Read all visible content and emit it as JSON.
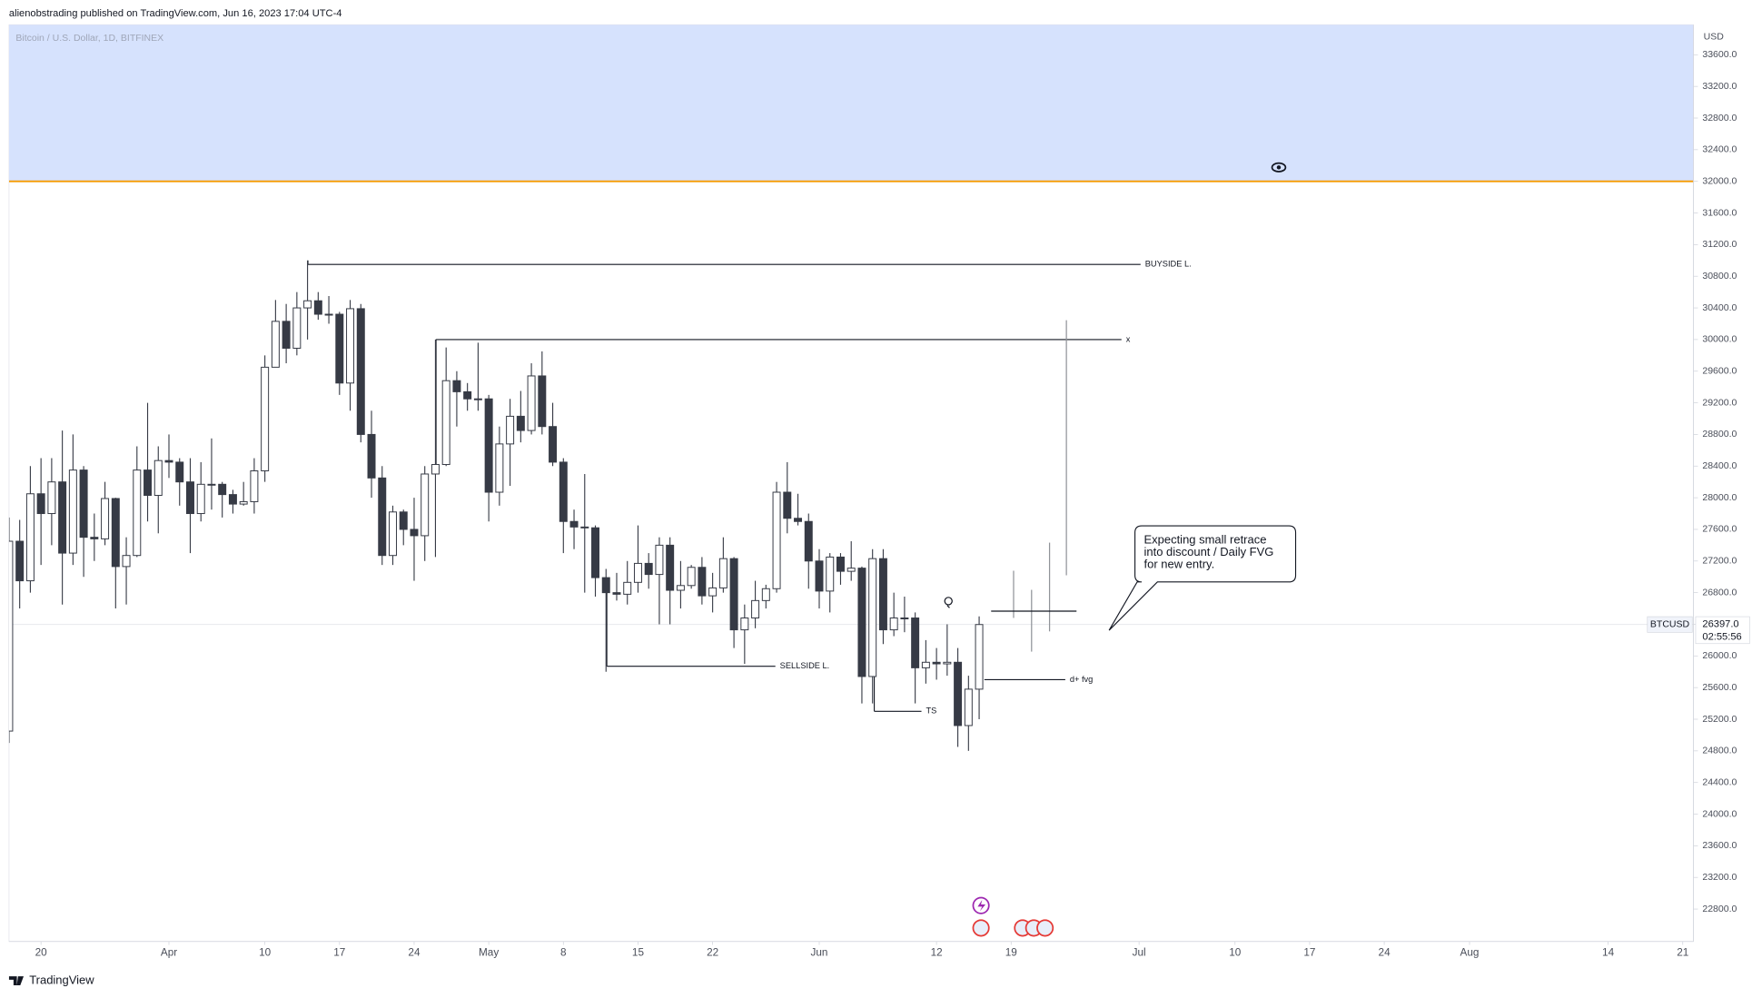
{
  "header": "alienobstrading published on TradingView.com, Jun 16, 2023 17:04 UTC-4",
  "footer": "TradingView",
  "chart_data": {
    "type": "candlestick",
    "title": "Bitcoin / U.S. Dollar, 1D, BITFINEX",
    "y_unit": "USD",
    "symbol": "BTCUSD",
    "last_price": {
      "value": 26397,
      "label": "26397.0"
    },
    "countdown": "02:55:56",
    "up_color": "#ffffff",
    "down_color": "#363a45",
    "edge_color": "#363a45",
    "zone_bottom": 32000,
    "zone_color": "#d6e2fd",
    "zone_line_color": "#f59a00",
    "annotations": [
      {
        "label": "BUYSIDE L.",
        "level": 30950
      },
      {
        "label": "x",
        "level": 30000
      },
      {
        "label": "SELLSIDE L.",
        "level": 25870
      },
      {
        "label": "TS",
        "level": 25300
      },
      {
        "label": "d+ fvg",
        "level": 25700
      }
    ],
    "callout": [
      "Expecting small retrace",
      "into discount / Daily FVG",
      "for new entry."
    ],
    "xlim": [
      "2023-03-17",
      "2023-08-22"
    ],
    "xticks": [
      {
        "value": "2023-03-20",
        "label": "20"
      },
      {
        "value": "2023-04-01",
        "label": "Apr"
      },
      {
        "value": "2023-04-10",
        "label": "10"
      },
      {
        "value": "2023-04-17",
        "label": "17"
      },
      {
        "value": "2023-04-24",
        "label": "24"
      },
      {
        "value": "2023-05-01",
        "label": "May"
      },
      {
        "value": "2023-05-08",
        "label": "8"
      },
      {
        "value": "2023-05-15",
        "label": "15"
      },
      {
        "value": "2023-05-22",
        "label": "22"
      },
      {
        "value": "2023-06-01",
        "label": "Jun"
      },
      {
        "value": "2023-06-12",
        "label": "12"
      },
      {
        "value": "2023-06-19",
        "label": "19"
      },
      {
        "value": "2023-07-01",
        "label": "Jul"
      },
      {
        "value": "2023-07-10",
        "label": "10"
      },
      {
        "value": "2023-07-17",
        "label": "17"
      },
      {
        "value": "2023-07-24",
        "label": "24"
      },
      {
        "value": "2023-08-01",
        "label": "Aug"
      },
      {
        "value": "2023-08-14",
        "label": "14"
      },
      {
        "value": "2023-08-21",
        "label": "21"
      }
    ],
    "ylim": [
      22390,
      33980
    ],
    "yticks": [
      {
        "value": 22800,
        "label": "22800.0"
      },
      {
        "value": 23200,
        "label": "23200.0"
      },
      {
        "value": 23600,
        "label": "23600.0"
      },
      {
        "value": 24000,
        "label": "24000.0"
      },
      {
        "value": 24400,
        "label": "24400.0"
      },
      {
        "value": 24800,
        "label": "24800.0"
      },
      {
        "value": 25200,
        "label": "25200.0"
      },
      {
        "value": 25600,
        "label": "25600.0"
      },
      {
        "value": 26000,
        "label": "26000.0"
      },
      {
        "value": 26400,
        "label": "26400.0"
      },
      {
        "value": 26800,
        "label": "26800.0"
      },
      {
        "value": 27200,
        "label": "27200.0"
      },
      {
        "value": 27600,
        "label": "27600.0"
      },
      {
        "value": 28000,
        "label": "28000.0"
      },
      {
        "value": 28400,
        "label": "28400.0"
      },
      {
        "value": 28800,
        "label": "28800.0"
      },
      {
        "value": 29200,
        "label": "29200.0"
      },
      {
        "value": 29600,
        "label": "29600.0"
      },
      {
        "value": 30000,
        "label": "30000.0"
      },
      {
        "value": 30400,
        "label": "30400.0"
      },
      {
        "value": 30800,
        "label": "30800.0"
      },
      {
        "value": 31200,
        "label": "31200.0"
      },
      {
        "value": 31600,
        "label": "31600.0"
      },
      {
        "value": 32000,
        "label": "32000.0"
      },
      {
        "value": 32400,
        "label": "32400.0"
      },
      {
        "value": 32800,
        "label": "32800.0"
      },
      {
        "value": 33200,
        "label": "33200.0"
      },
      {
        "value": 33600,
        "label": "33600.0"
      }
    ],
    "x": [
      "2023-03-17",
      "2023-03-18",
      "2023-03-19",
      "2023-03-20",
      "2023-03-21",
      "2023-03-22",
      "2023-03-23",
      "2023-03-24",
      "2023-03-25",
      "2023-03-26",
      "2023-03-27",
      "2023-03-28",
      "2023-03-29",
      "2023-03-30",
      "2023-03-31",
      "2023-04-01",
      "2023-04-02",
      "2023-04-03",
      "2023-04-04",
      "2023-04-05",
      "2023-04-06",
      "2023-04-07",
      "2023-04-08",
      "2023-04-09",
      "2023-04-10",
      "2023-04-11",
      "2023-04-12",
      "2023-04-13",
      "2023-04-14",
      "2023-04-15",
      "2023-04-16",
      "2023-04-17",
      "2023-04-18",
      "2023-04-19",
      "2023-04-20",
      "2023-04-21",
      "2023-04-22",
      "2023-04-23",
      "2023-04-24",
      "2023-04-25",
      "2023-04-26",
      "2023-04-27",
      "2023-04-28",
      "2023-04-29",
      "2023-04-30",
      "2023-05-01",
      "2023-05-02",
      "2023-05-03",
      "2023-05-04",
      "2023-05-05",
      "2023-05-06",
      "2023-05-07",
      "2023-05-08",
      "2023-05-09",
      "2023-05-10",
      "2023-05-11",
      "2023-05-12",
      "2023-05-13",
      "2023-05-14",
      "2023-05-15",
      "2023-05-16",
      "2023-05-17",
      "2023-05-18",
      "2023-05-19",
      "2023-05-20",
      "2023-05-21",
      "2023-05-22",
      "2023-05-23",
      "2023-05-24",
      "2023-05-25",
      "2023-05-26",
      "2023-05-27",
      "2023-05-28",
      "2023-05-29",
      "2023-05-30",
      "2023-05-31",
      "2023-06-01",
      "2023-06-02",
      "2023-06-03",
      "2023-06-04",
      "2023-06-05",
      "2023-06-06",
      "2023-06-07",
      "2023-06-08",
      "2023-06-09",
      "2023-06-10",
      "2023-06-11",
      "2023-06-12",
      "2023-06-13",
      "2023-06-14",
      "2023-06-15",
      "2023-06-16"
    ],
    "open": [
      25050,
      27450,
      26950,
      28050,
      27800,
      28200,
      27300,
      28350,
      27500,
      27480,
      27990,
      27130,
      27270,
      28350,
      28030,
      28470,
      28450,
      28200,
      27800,
      28170,
      28170,
      28040,
      27920,
      27950,
      28340,
      29650,
      30230,
      29890,
      30400,
      30490,
      30320,
      30320,
      29450,
      30390,
      28800,
      28250,
      27270,
      27820,
      27600,
      27520,
      28300,
      28420,
      29480,
      29340,
      29250,
      29250,
      28070,
      28680,
      29030,
      28850,
      29540,
      28900,
      28450,
      27700,
      27630,
      27620,
      26990,
      26800,
      26780,
      26930,
      27170,
      27030,
      27400,
      26830,
      26890,
      27120,
      26760,
      26860,
      27230,
      26330,
      26480,
      26700,
      26850,
      28070,
      27740,
      27700,
      27200,
      26820,
      27250,
      27070,
      27110,
      25740,
      27230,
      26330,
      26480,
      26480,
      25850,
      25920,
      25900,
      25920,
      25120,
      25580
    ],
    "high": [
      27750,
      27720,
      28400,
      28500,
      28500,
      28850,
      28800,
      28400,
      27800,
      28200,
      28000,
      27500,
      28650,
      29200,
      28650,
      28800,
      28500,
      28500,
      28450,
      28750,
      28200,
      28100,
      28200,
      28500,
      29800,
      30500,
      30450,
      30600,
      31000,
      30600,
      30550,
      30350,
      30500,
      30450,
      29100,
      28400,
      27900,
      27850,
      28000,
      28400,
      30000,
      29900,
      29600,
      29450,
      29960,
      29300,
      28900,
      29250,
      29350,
      29700,
      29850,
      29200,
      28500,
      27850,
      28300,
      27650,
      27100,
      27050,
      27200,
      27650,
      27300,
      27500,
      27500,
      27200,
      27150,
      27250,
      27050,
      27500,
      27250,
      26650,
      26950,
      26900,
      28200,
      28450,
      28050,
      27800,
      27350,
      27300,
      27300,
      27450,
      27130,
      27350,
      27350,
      26800,
      26750,
      26550,
      26200,
      26100,
      26400,
      26100,
      25750,
      26500
    ],
    "low": [
      24900,
      26600,
      26800,
      27150,
      27400,
      26650,
      27150,
      27000,
      27200,
      27400,
      26600,
      26650,
      27250,
      27700,
      27550,
      28250,
      27900,
      27300,
      27700,
      27850,
      27750,
      27800,
      27900,
      27800,
      28200,
      29650,
      29700,
      29800,
      30000,
      30250,
      30200,
      29300,
      29100,
      28700,
      28000,
      27150,
      27150,
      27400,
      26950,
      27200,
      27250,
      28400,
      28900,
      29100,
      29100,
      27700,
      27900,
      28150,
      28700,
      28800,
      28800,
      28400,
      27300,
      27350,
      26800,
      26750,
      25800,
      26700,
      26650,
      26800,
      26850,
      26400,
      26400,
      26600,
      26850,
      26650,
      26550,
      26800,
      26100,
      25900,
      26350,
      26600,
      26800,
      27550,
      27650,
      26850,
      26600,
      26550,
      26900,
      26950,
      25400,
      25400,
      26150,
      26250,
      26300,
      25400,
      25650,
      25700,
      25750,
      24850,
      24800,
      25200
    ],
    "close": [
      27450,
      26950,
      28050,
      27800,
      28200,
      27300,
      28350,
      27500,
      27480,
      27990,
      27130,
      27270,
      28350,
      28030,
      28470,
      28450,
      28200,
      27800,
      28170,
      28170,
      28040,
      27920,
      27950,
      28340,
      29650,
      30230,
      29890,
      30400,
      30490,
      30320,
      30320,
      29450,
      30390,
      28800,
      28250,
      27270,
      27820,
      27600,
      27520,
      28300,
      28420,
      29480,
      29340,
      29250,
      29250,
      28070,
      28680,
      29030,
      28850,
      29540,
      28900,
      28450,
      27700,
      27630,
      27620,
      26990,
      26800,
      26780,
      26930,
      27170,
      27030,
      27400,
      26830,
      26890,
      27120,
      26760,
      26860,
      27230,
      26330,
      26480,
      26700,
      26850,
      28070,
      27740,
      27700,
      27200,
      26820,
      27250,
      27070,
      27110,
      25740,
      27230,
      26330,
      26480,
      26480,
      25850,
      25920,
      25900,
      25920,
      25120,
      25580,
      26397
    ]
  }
}
